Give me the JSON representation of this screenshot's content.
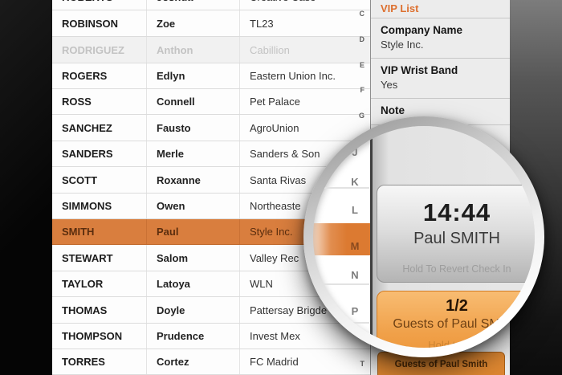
{
  "table": {
    "rows": [
      {
        "last": "ROBERTS",
        "first": "Joshua",
        "company": "Creative Case",
        "state": "cut"
      },
      {
        "last": "ROBINSON",
        "first": "Zoe",
        "company": "TL23",
        "state": "normal"
      },
      {
        "last": "RODRIGUEZ",
        "first": "Anthon",
        "company": "Cabillion",
        "state": "disabled"
      },
      {
        "last": "ROGERS",
        "first": "Edlyn",
        "company": "Eastern Union Inc.",
        "state": "normal"
      },
      {
        "last": "ROSS",
        "first": "Connell",
        "company": "Pet Palace",
        "state": "normal"
      },
      {
        "last": "SANCHEZ",
        "first": "Fausto",
        "company": "AgroUnion",
        "state": "normal"
      },
      {
        "last": "SANDERS",
        "first": "Merle",
        "company": "Sanders & Son",
        "state": "normal"
      },
      {
        "last": "SCOTT",
        "first": "Roxanne",
        "company": "Santa Rivas",
        "state": "normal"
      },
      {
        "last": "SIMMONS",
        "first": "Owen",
        "company": "Northeaste",
        "state": "normal"
      },
      {
        "last": "SMITH",
        "first": "Paul",
        "company": "Style Inc.",
        "state": "selected"
      },
      {
        "last": "STEWART",
        "first": "Salom",
        "company": "Valley Rec",
        "state": "normal"
      },
      {
        "last": "TAYLOR",
        "first": "Latoya",
        "company": "WLN",
        "state": "normal"
      },
      {
        "last": "THOMAS",
        "first": "Doyle",
        "company": "Pattersay Brigde",
        "state": "normal"
      },
      {
        "last": "THOMPSON",
        "first": "Prudence",
        "company": "Invest Mex",
        "state": "normal"
      },
      {
        "last": "TORRES",
        "first": "Cortez",
        "company": "FC Madrid",
        "state": "normal"
      }
    ],
    "index_letters_visible": [
      "C",
      "D",
      "E",
      "F",
      "G",
      "T"
    ]
  },
  "detail_panel": {
    "section_label": "VIP List",
    "fields": [
      {
        "label": "Company Name",
        "value": "Style Inc."
      },
      {
        "label": "VIP Wrist Band",
        "value": "Yes"
      },
      {
        "label": "Note",
        "value": ""
      }
    ],
    "guests_button_label": "Guests of Paul Smith"
  },
  "magnifier": {
    "index_letters": [
      "J",
      "K",
      "L",
      "M",
      "N",
      "P"
    ],
    "fragments": {
      "company_n": "n",
      "letter_p": "p",
      "company_gde": "gde."
    },
    "checkin_card": {
      "time": "14:44",
      "name": "Paul SMITH",
      "hint": "Hold To Revert Check In"
    },
    "guests_card": {
      "count": "1/2",
      "label": "Guests of Paul SMITH",
      "hint": "Hold to Rest"
    }
  },
  "colors": {
    "selected_row_orange": "#d97e3e",
    "vip_list_orange": "#dd6f2e",
    "guests_button_orange": "#dd8630",
    "guests_card_orange": "#f0a14a"
  }
}
